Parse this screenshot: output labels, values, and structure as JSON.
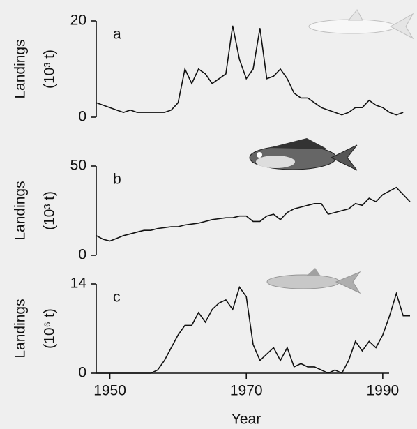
{
  "chart_data": [
    {
      "type": "line",
      "panel_label": "a",
      "ylabel": "Landings",
      "ylabel_unit": "(10³ t)",
      "x": [
        1948,
        1949,
        1950,
        1951,
        1952,
        1953,
        1954,
        1955,
        1956,
        1957,
        1958,
        1959,
        1960,
        1961,
        1962,
        1963,
        1964,
        1965,
        1966,
        1967,
        1968,
        1969,
        1970,
        1971,
        1972,
        1973,
        1974,
        1975,
        1976,
        1977,
        1978,
        1979,
        1980,
        1981,
        1982,
        1983,
        1984,
        1985,
        1986,
        1987,
        1988,
        1989,
        1990,
        1991,
        1992,
        1993,
        1994
      ],
      "values": [
        3,
        2.5,
        2,
        1.5,
        1,
        1.5,
        1,
        1,
        1,
        1,
        1,
        1.5,
        3,
        10,
        7,
        10,
        9,
        7,
        8,
        9,
        19,
        12,
        8,
        10,
        18.5,
        8,
        8.5,
        10,
        8,
        5,
        4,
        4,
        3,
        2,
        1.5,
        1,
        0.5,
        1,
        2,
        2,
        3.5,
        2.5,
        2,
        1,
        0.5,
        1,
        null
      ],
      "color": "#111111",
      "xlim": [
        1948,
        1994
      ],
      "ylim": [
        0,
        20
      ],
      "yticks": [
        0,
        20
      ]
    },
    {
      "type": "line",
      "panel_label": "b",
      "ylabel": "Landings",
      "ylabel_unit": "(10³ t)",
      "x": [
        1948,
        1949,
        1950,
        1951,
        1952,
        1953,
        1954,
        1955,
        1956,
        1957,
        1958,
        1959,
        1960,
        1961,
        1962,
        1963,
        1964,
        1965,
        1966,
        1967,
        1968,
        1969,
        1970,
        1971,
        1972,
        1973,
        1974,
        1975,
        1976,
        1977,
        1978,
        1979,
        1980,
        1981,
        1982,
        1983,
        1984,
        1985,
        1986,
        1987,
        1988,
        1989,
        1990,
        1991,
        1992,
        1993,
        1994
      ],
      "values": [
        11,
        9,
        8,
        9.5,
        11,
        12,
        13,
        14,
        14,
        15,
        15.5,
        16,
        16,
        17,
        17.5,
        18,
        19,
        20,
        20.5,
        21,
        21,
        22,
        22,
        19,
        19,
        22,
        23,
        20,
        24,
        26,
        27,
        28,
        29,
        29,
        23,
        24,
        25,
        26,
        29,
        28,
        32,
        30,
        34,
        36,
        38,
        34,
        30
      ],
      "color": "#111111",
      "xlim": [
        1948,
        1994
      ],
      "ylim": [
        0,
        50
      ],
      "yticks": [
        0,
        50
      ]
    },
    {
      "type": "line",
      "panel_label": "c",
      "ylabel": "Landings",
      "ylabel_unit": "(10⁶ t)",
      "x": [
        1948,
        1949,
        1950,
        1951,
        1952,
        1953,
        1954,
        1955,
        1956,
        1957,
        1958,
        1959,
        1960,
        1961,
        1962,
        1963,
        1964,
        1965,
        1966,
        1967,
        1968,
        1969,
        1970,
        1971,
        1972,
        1973,
        1974,
        1975,
        1976,
        1977,
        1978,
        1979,
        1980,
        1981,
        1982,
        1983,
        1984,
        1985,
        1986,
        1987,
        1988,
        1989,
        1990,
        1991,
        1992,
        1993,
        1994
      ],
      "values": [
        0,
        0,
        0,
        0,
        0,
        0,
        0,
        0,
        0,
        0.5,
        2,
        4,
        6,
        7.5,
        7.5,
        9.5,
        8,
        10,
        11,
        11.5,
        10,
        13.5,
        12,
        4.5,
        2,
        3,
        4,
        2,
        4,
        1,
        1.5,
        1,
        1,
        0.5,
        0,
        0.5,
        0,
        2,
        5,
        3.5,
        5,
        4,
        6,
        9,
        12.5,
        9,
        9
      ],
      "color": "#111111",
      "xlim": [
        1948,
        1994
      ],
      "ylim": [
        0,
        14
      ],
      "yticks": [
        0,
        14
      ],
      "xticks": [
        1950,
        1970,
        1990
      ],
      "xlabel": "Year"
    }
  ]
}
